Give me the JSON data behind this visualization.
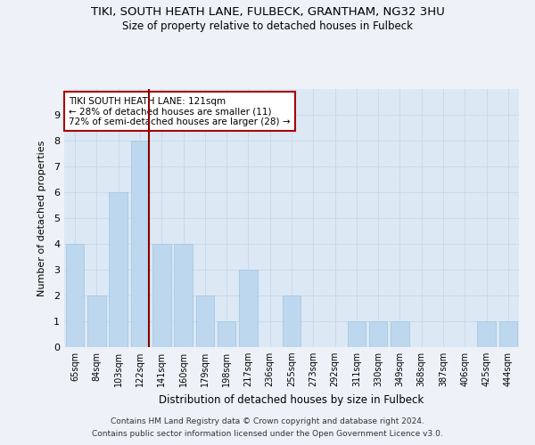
{
  "title": "TIKI, SOUTH HEATH LANE, FULBECK, GRANTHAM, NG32 3HU",
  "subtitle": "Size of property relative to detached houses in Fulbeck",
  "xlabel": "Distribution of detached houses by size in Fulbeck",
  "ylabel": "Number of detached properties",
  "categories": [
    "65sqm",
    "84sqm",
    "103sqm",
    "122sqm",
    "141sqm",
    "160sqm",
    "179sqm",
    "198sqm",
    "217sqm",
    "236sqm",
    "255sqm",
    "273sqm",
    "292sqm",
    "311sqm",
    "330sqm",
    "349sqm",
    "368sqm",
    "387sqm",
    "406sqm",
    "425sqm",
    "444sqm"
  ],
  "values": [
    4,
    2,
    6,
    8,
    4,
    4,
    2,
    1,
    3,
    0,
    2,
    0,
    0,
    1,
    1,
    1,
    0,
    0,
    0,
    1,
    1
  ],
  "bar_color": "#bdd7ee",
  "bar_edge_color": "#9ec6e0",
  "grid_color": "#c8d8e8",
  "vline_x_index": 3,
  "vline_color": "#880000",
  "annotation_text": "TIKI SOUTH HEATH LANE: 121sqm\n← 28% of detached houses are smaller (11)\n72% of semi-detached houses are larger (28) →",
  "annotation_box_color": "#ffffff",
  "annotation_box_edge": "#aa0000",
  "footer_line1": "Contains HM Land Registry data © Crown copyright and database right 2024.",
  "footer_line2": "Contains public sector information licensed under the Open Government Licence v3.0.",
  "ylim": [
    0,
    10
  ],
  "yticks": [
    0,
    1,
    2,
    3,
    4,
    5,
    6,
    7,
    8,
    9
  ],
  "background_color": "#eef2f8",
  "plot_bg_color": "#dce8f4",
  "title_fontsize": 9.5,
  "subtitle_fontsize": 8.5
}
